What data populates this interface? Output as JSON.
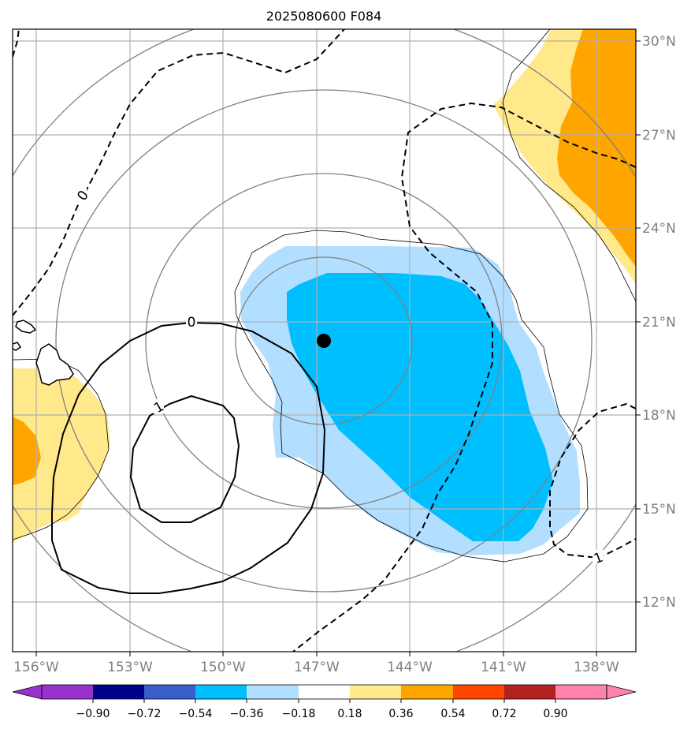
{
  "figure": {
    "title": "2025080600 F084"
  },
  "map": {
    "lon_range": [
      -157,
      -136.5
    ],
    "lat_range": [
      10.3,
      30.3
    ],
    "lon_ticks": [
      "156°W",
      "153°W",
      "150°W",
      "147°W",
      "144°W",
      "141°W",
      "138°W"
    ],
    "lat_ticks": [
      "30°N",
      "27°N",
      "24°N",
      "21°N",
      "18°N",
      "15°N",
      "12°N"
    ],
    "storm_center_marker": true,
    "contour_labels": [
      {
        "text": "0"
      },
      {
        "text": "0"
      },
      {
        "text": "1"
      },
      {
        "text": "1"
      }
    ],
    "colors": {
      "grid": "#b0b0b0",
      "range_rings": "#808080",
      "coastline": "#000000",
      "tick_labels": "#808080"
    }
  },
  "colorbar": {
    "levels": [
      "−0.90",
      "−0.72",
      "−0.54",
      "−0.36",
      "−0.18",
      "0.18",
      "0.36",
      "0.54",
      "0.72",
      "0.90"
    ],
    "colors": [
      "#9932cc",
      "#00008b",
      "#3a5fcd",
      "#00bfff",
      "#b2dfff",
      "#ffffff",
      "#ffe98a",
      "#ffa500",
      "#ff4500",
      "#b22222",
      "#ff82ab"
    ]
  }
}
